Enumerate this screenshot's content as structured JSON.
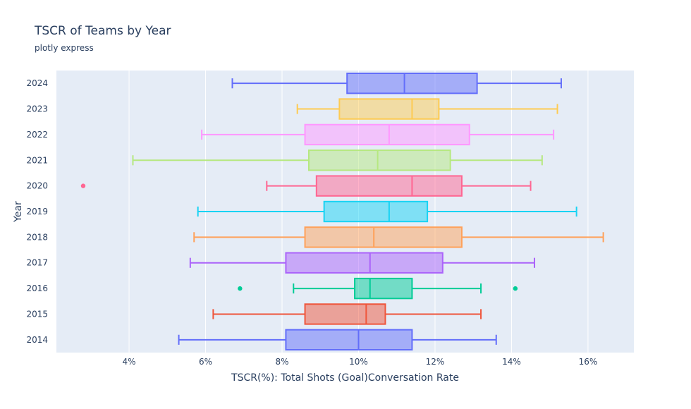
{
  "chart_data": {
    "type": "box",
    "orientation": "horizontal",
    "title": "TSCR of Teams by Year",
    "subtitle": "plotly express",
    "xlabel": "TSCR(%): Total Shots (Goal)Conversation Rate",
    "ylabel": "Year",
    "xlim": [
      2.1,
      17.2
    ],
    "xticks": [
      4,
      6,
      8,
      10,
      12,
      14,
      16
    ],
    "xtick_labels": [
      "4%",
      "6%",
      "8%",
      "10%",
      "12%",
      "14%",
      "16%"
    ],
    "grid": true,
    "background": "#E5ECF6",
    "categories": [
      "2014",
      "2015",
      "2016",
      "2017",
      "2018",
      "2019",
      "2020",
      "2021",
      "2022",
      "2023",
      "2024"
    ],
    "series": [
      {
        "category": "2014",
        "color": "#636EFA",
        "min": 5.3,
        "q1": 8.1,
        "median": 10.0,
        "q3": 11.4,
        "max": 13.6,
        "outliers": []
      },
      {
        "category": "2015",
        "color": "#EF553B",
        "min": 6.2,
        "q1": 8.6,
        "median": 10.2,
        "q3": 10.7,
        "max": 13.2,
        "outliers": []
      },
      {
        "category": "2016",
        "color": "#00CC96",
        "min": 8.3,
        "q1": 9.9,
        "median": 10.3,
        "q3": 11.4,
        "max": 13.2,
        "outliers": [
          6.9,
          14.1
        ]
      },
      {
        "category": "2017",
        "color": "#AB63FA",
        "min": 5.6,
        "q1": 8.1,
        "median": 10.3,
        "q3": 12.2,
        "max": 14.6,
        "outliers": []
      },
      {
        "category": "2018",
        "color": "#FFA15A",
        "min": 5.7,
        "q1": 8.6,
        "median": 10.4,
        "q3": 12.7,
        "max": 16.4,
        "outliers": []
      },
      {
        "category": "2019",
        "color": "#19D3F3",
        "min": 5.8,
        "q1": 9.1,
        "median": 10.8,
        "q3": 11.8,
        "max": 15.7,
        "outliers": []
      },
      {
        "category": "2020",
        "color": "#FF6692",
        "min": 7.6,
        "q1": 8.9,
        "median": 11.4,
        "q3": 12.7,
        "max": 14.5,
        "outliers": [
          2.8
        ]
      },
      {
        "category": "2021",
        "color": "#B6E880",
        "min": 4.1,
        "q1": 8.7,
        "median": 10.5,
        "q3": 12.4,
        "max": 14.8,
        "outliers": []
      },
      {
        "category": "2022",
        "color": "#FF97FF",
        "min": 5.9,
        "q1": 8.6,
        "median": 10.8,
        "q3": 12.9,
        "max": 15.1,
        "outliers": []
      },
      {
        "category": "2023",
        "color": "#FECB52",
        "min": 8.4,
        "q1": 9.5,
        "median": 11.4,
        "q3": 12.1,
        "max": 15.2,
        "outliers": []
      },
      {
        "category": "2024",
        "color": "#636EFA",
        "min": 6.7,
        "q1": 9.7,
        "median": 11.2,
        "q3": 13.1,
        "max": 15.3,
        "outliers": []
      }
    ]
  }
}
